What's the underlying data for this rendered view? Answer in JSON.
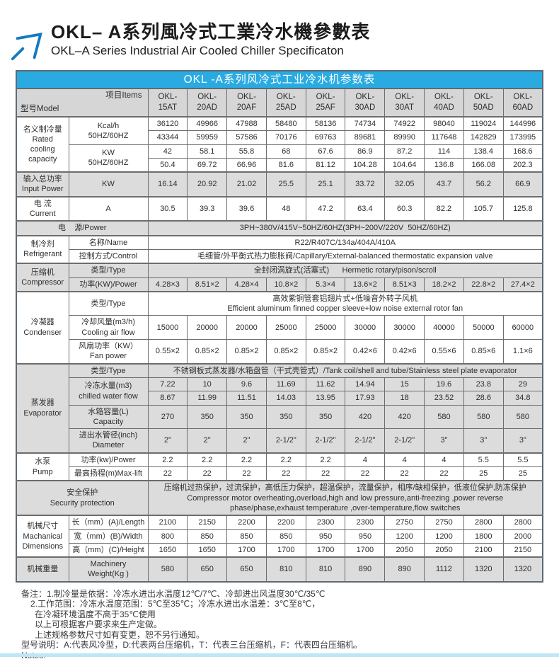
{
  "page_title": {
    "zh": "OKL– A系列風冷式工業冷水機參數表",
    "en": "OKL–A Series Industrial Air Cooled Chiller Specificaton"
  },
  "colors": {
    "accent_blue": "#29abe2",
    "arrow_blue": "#1779be",
    "shade_gray": "#dcdcdc",
    "header_gray": "#d6d6d6",
    "bottom_bar_blue": "#bfe5f6"
  },
  "table": {
    "caption": "OKL -A系列风冷式工业冷水机参数表",
    "corner": {
      "model_label": "型号Model",
      "items_label": "项目Items"
    },
    "models": [
      "OKL-\n15AT",
      "OKL-\n20AD",
      "OKL-\n20AF",
      "OKL-\n25AD",
      "OKL-\n25AF",
      "OKL-\n30AD",
      "OKL-\n30AT",
      "OKL-\n40AD",
      "OKL-\n50AD",
      "OKL-\n60AD"
    ],
    "rows": [
      {
        "sec": true,
        "shade": false,
        "cells": [
          {
            "t": "名义制冷量\nRated\ncooling\ncapacity",
            "k": "label",
            "rs": 4
          },
          {
            "t": "Kcal/h\n50HZ/60HZ",
            "k": "item",
            "rs": 2
          },
          "36120",
          "49966",
          "47988",
          "58480",
          "58136",
          "74734",
          "74922",
          "98040",
          "119024",
          "144996"
        ]
      },
      {
        "shade": false,
        "cells": [
          "43344",
          "59959",
          "57586",
          "70176",
          "69763",
          "89681",
          "89990",
          "117648",
          "142829",
          "173995"
        ]
      },
      {
        "shade": false,
        "cells": [
          {
            "t": "KW\n50HZ/60HZ",
            "k": "item",
            "rs": 2
          },
          "42",
          "58.1",
          "55.8",
          "68",
          "67.6",
          "86.9",
          "87.2",
          "114",
          "138.4",
          "168.6"
        ]
      },
      {
        "shade": false,
        "cells": [
          "50.4",
          "69.72",
          "66.96",
          "81.6",
          "81.12",
          "104.28",
          "104.64",
          "136.8",
          "166.08",
          "202.3"
        ]
      },
      {
        "sec": true,
        "shade": true,
        "cells": [
          {
            "t": "输入总功率\nInput Power",
            "k": "label"
          },
          {
            "t": "KW",
            "k": "item"
          },
          "16.14",
          "20.92",
          "21.02",
          "25.5",
          "25.1",
          "33.72",
          "32.05",
          "43.7",
          "56.2",
          "66.9"
        ]
      },
      {
        "sec": true,
        "shade": false,
        "cells": [
          {
            "t": "电 流\nCurrent",
            "k": "label"
          },
          {
            "t": "A",
            "k": "item"
          },
          "30.5",
          "39.3",
          "39.6",
          "48",
          "47.2",
          "63.4",
          "60.3",
          "82.2",
          "105.7",
          "125.8"
        ]
      },
      {
        "sec": true,
        "shade": true,
        "cells": [
          {
            "t": "电    源/Power",
            "k": "label",
            "cs": 2
          },
          {
            "t": "3PH~380V/415V~50HZ/60HZ(3PH~200V/220V  50HZ/60HZ)",
            "k": "wide",
            "cs": 10
          }
        ]
      },
      {
        "sec": true,
        "shade": false,
        "cells": [
          {
            "t": "制冷剂\nRefrigerant",
            "k": "label",
            "rs": 2
          },
          {
            "t": "名称/Name",
            "k": "item"
          },
          {
            "t": "R22/R407C/134a/404A/410A",
            "k": "wide",
            "cs": 10
          }
        ]
      },
      {
        "shade": false,
        "cells": [
          {
            "t": "控制方式/Control",
            "k": "item"
          },
          {
            "t": "毛细管/外平衡式热力膨胀阀/Capillary/External-balanced thermostatic expansion valve",
            "k": "wide",
            "cs": 10
          }
        ]
      },
      {
        "sec": true,
        "shade": true,
        "cells": [
          {
            "t": "压缩机\nCompressor",
            "k": "label",
            "rs": 2
          },
          {
            "t": "类型/Type",
            "k": "item"
          },
          {
            "t": "全封闭涡旋式(活塞式)      Hermetic rotary/pison/scroll",
            "k": "wide",
            "cs": 10
          }
        ]
      },
      {
        "shade": true,
        "cells": [
          {
            "t": "功率(KW)/Power",
            "k": "item"
          },
          "4.28×3",
          "8.51×2",
          "4.28×4",
          "10.8×2",
          "5.3×4",
          "13.6×2",
          "8.51×3",
          "18.2×2",
          "22.8×2",
          "27.4×2"
        ]
      },
      {
        "sec": true,
        "shade": false,
        "cells": [
          {
            "t": "冷凝器\nCondenser",
            "k": "label",
            "rs": 3
          },
          {
            "t": "类型/Type",
            "k": "item"
          },
          {
            "t": "高效紫铜管套铝翅片式+低噪音外转子风机\nEfficient aluminum finned copper sleeve+low noise external rotor fan",
            "k": "wide",
            "cs": 10
          }
        ]
      },
      {
        "shade": false,
        "cells": [
          {
            "t": "冷却风量(m3/h)\nCooling air flow",
            "k": "item"
          },
          "15000",
          "20000",
          "20000",
          "25000",
          "25000",
          "30000",
          "30000",
          "40000",
          "50000",
          "60000"
        ]
      },
      {
        "shade": false,
        "cells": [
          {
            "t": "风扇功率（KW）\nFan power",
            "k": "item"
          },
          "0.55×2",
          "0.85×2",
          "0.85×2",
          "0.85×2",
          "0.85×2",
          "0.42×6",
          "0.42×6",
          "0.55×6",
          "0.85×6",
          "1.1×6"
        ]
      },
      {
        "sec": true,
        "shade": true,
        "cells": [
          {
            "t": "蒸发器\nEvaporator",
            "k": "label",
            "rs": 5
          },
          {
            "t": "类型/Type",
            "k": "item"
          },
          {
            "t": "不锈钢板式蒸发器/水箱盘管（干式壳管式）/Tank coil/shell and tube/Stainless steel plate evaporator",
            "k": "wide",
            "cs": 10
          }
        ]
      },
      {
        "shade": true,
        "cells": [
          {
            "t": "冷冻水量(m3)\nchilled water flow",
            "k": "item",
            "rs": 2
          },
          "7.22",
          "10",
          "9.6",
          "11.69",
          "11.62",
          "14.94",
          "15",
          "19.6",
          "23.8",
          "29"
        ]
      },
      {
        "shade": true,
        "cells": [
          "8.67",
          "11.99",
          "11.51",
          "14.03",
          "13.95",
          "17.93",
          "18",
          "23.52",
          "28.6",
          "34.8"
        ]
      },
      {
        "shade": true,
        "cells": [
          {
            "t": "水箱容量(L)\nCapacity",
            "k": "item"
          },
          "270",
          "350",
          "350",
          "350",
          "350",
          "420",
          "420",
          "580",
          "580",
          "580"
        ]
      },
      {
        "shade": true,
        "cells": [
          {
            "t": "进出水管径(inch)\nDiameter",
            "k": "item"
          },
          "2\"",
          "2\"",
          "2\"",
          "2-1/2\"",
          "2-1/2\"",
          "2-1/2\"",
          "2-1/2\"",
          "3\"",
          "3\"",
          "3\""
        ]
      },
      {
        "sec": true,
        "shade": false,
        "cells": [
          {
            "t": "水泵\nPump",
            "k": "label",
            "rs": 2
          },
          {
            "t": "功率(kw)/Power",
            "k": "item"
          },
          "2.2",
          "2.2",
          "2.2",
          "2.2",
          "2.2",
          "4",
          "4",
          "4",
          "5.5",
          "5.5"
        ]
      },
      {
        "shade": false,
        "cells": [
          {
            "t": "最高扬程(m)Max-lift",
            "k": "item"
          },
          "22",
          "22",
          "22",
          "22",
          "22",
          "22",
          "22",
          "22",
          "25",
          "25"
        ]
      },
      {
        "sec": true,
        "shade": true,
        "cells": [
          {
            "t": "安全保护\nSecurity protection",
            "k": "label",
            "cs": 2
          },
          {
            "t": "压缩机过热保护，过流保护，高低压力保护，超温保护，流量保护，相序/缺相保护，低液位保护,防冻保护\nCompressor motor overheating,overload,high and low pressure,anti-freezing ,power reverse\nphase/phase,exhaust temperature ,over-temperature,flow switches",
            "k": "wide",
            "cs": 10
          }
        ]
      },
      {
        "sec": true,
        "shade": false,
        "cells": [
          {
            "t": "机械尺寸\nMachanical\nDimensions",
            "k": "label",
            "rs": 3
          },
          {
            "t": "长（mm）(A)/Length",
            "k": "item"
          },
          "2100",
          "2150",
          "2200",
          "2200",
          "2300",
          "2300",
          "2750",
          "2750",
          "2800",
          "2800"
        ]
      },
      {
        "shade": false,
        "cells": [
          {
            "t": "宽（mm）(B)/Width",
            "k": "item"
          },
          "800",
          "850",
          "850",
          "850",
          "950",
          "950",
          "1200",
          "1200",
          "1800",
          "2000"
        ]
      },
      {
        "shade": false,
        "cells": [
          {
            "t": "高（mm）(C)/Height",
            "k": "item"
          },
          "1650",
          "1650",
          "1700",
          "1700",
          "1700",
          "1700",
          "2050",
          "2050",
          "2100",
          "2150"
        ]
      },
      {
        "sec": true,
        "shade": true,
        "cells": [
          {
            "t": "机械重量",
            "k": "label"
          },
          {
            "t": "Machinery\nWeight(Kg )",
            "k": "item"
          },
          "580",
          "650",
          "650",
          "810",
          "810",
          "890",
          "890",
          "1112",
          "1320",
          "1320"
        ]
      }
    ]
  },
  "notes": {
    "lines": [
      {
        "t": "备注：1.制冷量是依据：冷冻水进出水温度12℃/7℃、冷却进出风温度30℃/35℃",
        "indent": 0
      },
      {
        "t": "2.工作范围：冷冻水温度范围：5℃至35℃；冷冻水进出水温差：3℃至8℃，",
        "indent": 1
      },
      {
        "t": "在冷凝环境温度不高于35℃使用",
        "indent": 2
      },
      {
        "t": "以上可根据客户要求来生产定做。",
        "indent": 2
      },
      {
        "t": "上述规格参数尺寸如有变更，恕不另行通知。",
        "indent": 2
      },
      {
        "t": "型号说明：A:代表风冷型，D:代表两台压缩机，T：代表三台压缩机，F：代表四台压缩机。",
        "indent": 0
      },
      {
        "t": "Notes:",
        "indent": 0
      }
    ]
  }
}
